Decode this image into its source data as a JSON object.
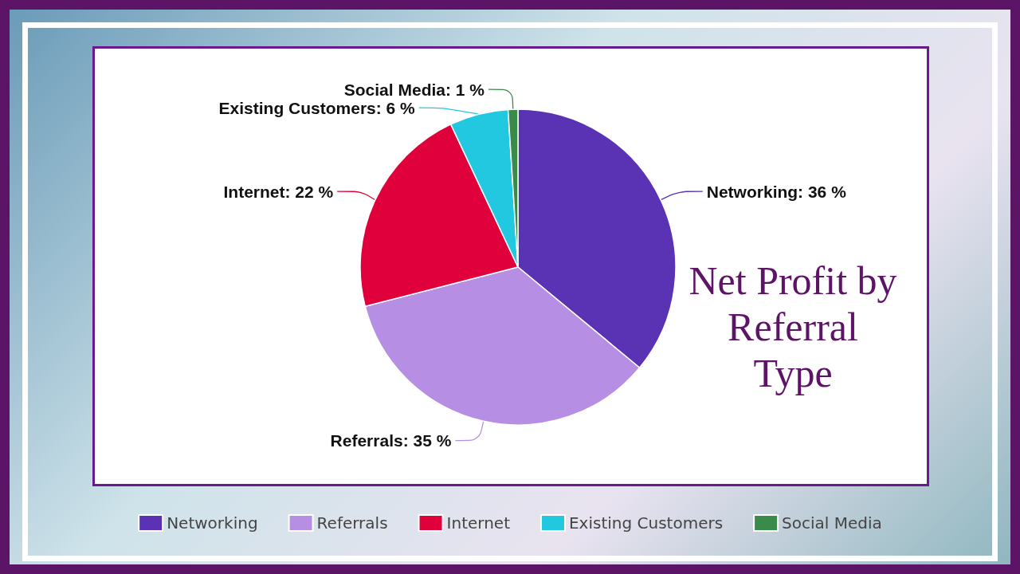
{
  "chart_data": {
    "type": "pie",
    "title": "Net Profit by Referral Type",
    "categories": [
      "Networking",
      "Referrals",
      "Internet",
      "Existing Customers",
      "Social Media"
    ],
    "values": [
      36,
      35,
      22,
      6,
      1
    ],
    "value_labels": [
      "Networking: 36 %",
      "Referrals: 35 %",
      "Internet: 22 %",
      "Existing Customers: 6 %",
      "Social Media: 1 %"
    ],
    "colors": [
      "#5a32b4",
      "#b68fe4",
      "#e0003c",
      "#22c8e0",
      "#3a8a4a"
    ],
    "legend": "bottom"
  }
}
